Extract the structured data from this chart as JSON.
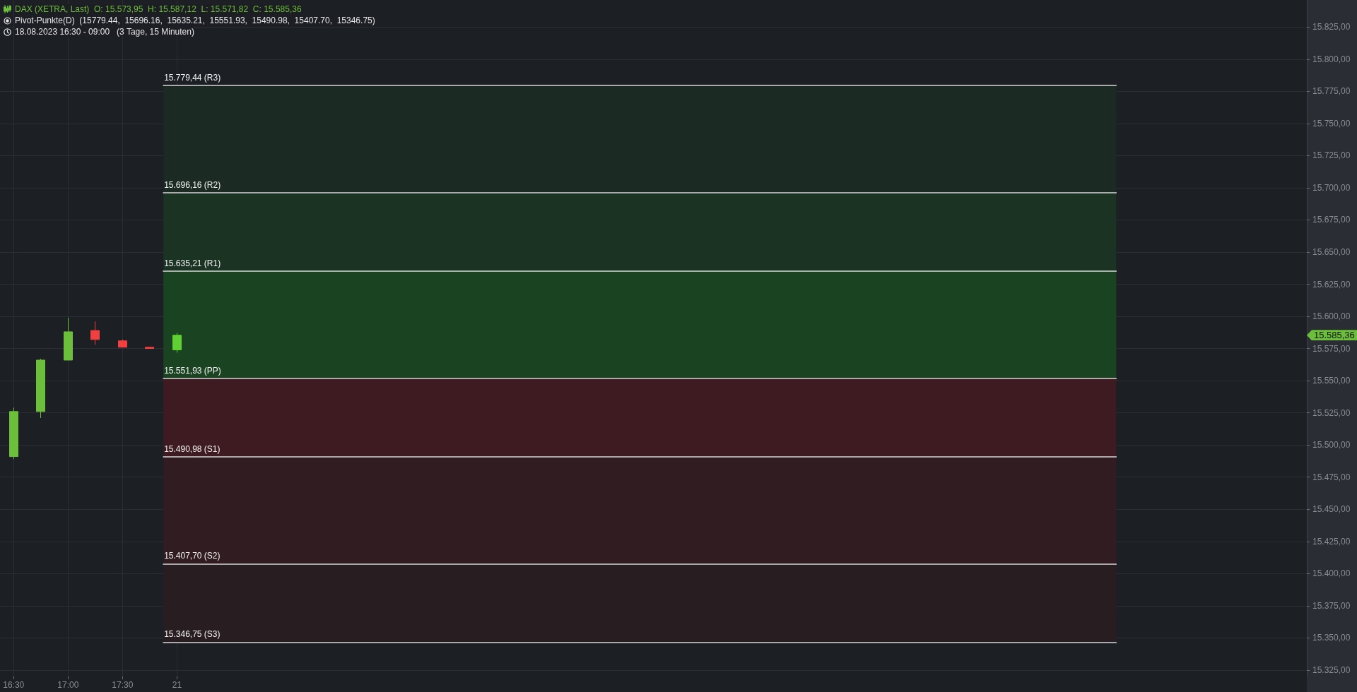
{
  "chart_data": {
    "type": "candlestick",
    "title": "DAX (XETRA, Last)  O: 15.573,95  H: 15.587,12  L: 15.571,82  C: 15.585,36",
    "subtitle": "Pivot-Punkte(D)  (15779.44,  15696.16,  15635.21,  15551.93,  15490.98,  15407.70,  15346.75)",
    "annotations": [
      "18.08.2023 16:30 - 09:00   (3 Tage, 15 Minuten)",
      "15.585,36"
    ],
    "categories": [
      "16:30",
      null,
      "17:00",
      null,
      "17:30",
      null,
      "21",
      null,
      null,
      null,
      null,
      null,
      null,
      null,
      null,
      null,
      null,
      null,
      null,
      null,
      null,
      null,
      null,
      null,
      null,
      null,
      null,
      null,
      null,
      null,
      null,
      null,
      null,
      null,
      null,
      null,
      null,
      null,
      null,
      null,
      null,
      null,
      null,
      null,
      null,
      null,
      null,
      null
    ],
    "ohlc": [
      [
        15491,
        15529,
        15489,
        15526
      ],
      [
        15526,
        15567,
        15521,
        15566
      ],
      [
        15566,
        15599,
        15566,
        15588
      ],
      [
        15589,
        15596,
        15578,
        15582
      ],
      [
        15581,
        15582,
        15576,
        15576
      ],
      [
        15576,
        15576,
        15575,
        15575
      ],
      [
        15573.95,
        15587.12,
        15571.82,
        15585.36
      ],
      null,
      null,
      null,
      null,
      null,
      null,
      null,
      null,
      null,
      null,
      null,
      null,
      null,
      null,
      null,
      null,
      null,
      null,
      null,
      null,
      null,
      null,
      null,
      null,
      null,
      null,
      null,
      null,
      null,
      null,
      null,
      null,
      null,
      null,
      null,
      null,
      null,
      null,
      null,
      null,
      null
    ],
    "colors": [
      "#6cbf3a",
      "#6cbf3a",
      "#6cbf3a",
      "#f23f3f",
      "#f23f3f",
      "#f23f3f",
      "#5fcf33",
      null,
      null,
      null,
      null,
      null,
      null,
      null,
      null,
      null,
      null,
      null,
      null,
      null,
      null,
      null,
      null,
      null,
      null,
      null,
      null,
      null,
      null,
      null,
      null,
      null,
      null,
      null,
      null,
      null,
      null,
      null,
      null,
      null,
      null,
      null,
      null,
      null,
      null,
      null,
      null,
      null
    ],
    "ylim": [
      15320,
      15846
    ],
    "yticks": [
      {
        "value": 15325,
        "label": "15.325,00"
      },
      {
        "value": 15350,
        "label": "15.350,00"
      },
      {
        "value": 15375,
        "label": "15.375,00"
      },
      {
        "value": 15400,
        "label": "15.400,00"
      },
      {
        "value": 15425,
        "label": "15.425,00"
      },
      {
        "value": 15450,
        "label": "15.450,00"
      },
      {
        "value": 15475,
        "label": "15.475,00"
      },
      {
        "value": 15500,
        "label": "15.500,00"
      },
      {
        "value": 15525,
        "label": "15.525,00"
      },
      {
        "value": 15550,
        "label": "15.550,00"
      },
      {
        "value": 15575,
        "label": "15.575,00"
      },
      {
        "value": 15600,
        "label": "15.600,00"
      },
      {
        "value": 15625,
        "label": "15.625,00"
      },
      {
        "value": 15650,
        "label": "15.650,00"
      },
      {
        "value": 15675,
        "label": "15.675,00"
      },
      {
        "value": 15700,
        "label": "15.700,00"
      },
      {
        "value": 15725,
        "label": "15.725,00"
      },
      {
        "value": 15750,
        "label": "15.750,00"
      },
      {
        "value": 15775,
        "label": "15.775,00"
      },
      {
        "value": 15800,
        "label": "15.800,00"
      },
      {
        "value": 15825,
        "label": "15.825,00"
      }
    ],
    "ref_lines": [
      {
        "axis": "y",
        "value": 15779.44,
        "label": "15.779,44 (R3)",
        "color": "#d9d9d9"
      },
      {
        "axis": "y",
        "value": 15696.16,
        "label": "15.696,16 (R2)",
        "color": "#d9d9d9"
      },
      {
        "axis": "y",
        "value": 15635.21,
        "label": "15.635,21 (R1)",
        "color": "#d9d9d9"
      },
      {
        "axis": "y",
        "value": 15551.93,
        "label": "15.551,93 (PP)",
        "color": "#d9d9d9"
      },
      {
        "axis": "y",
        "value": 15490.98,
        "label": "15.490,98 (S1)",
        "color": "#d9d9d9"
      },
      {
        "axis": "y",
        "value": 15407.7,
        "label": "15.407,70 (S2)",
        "color": "#d9d9d9"
      },
      {
        "axis": "y",
        "value": 15346.75,
        "label": "15.346,75 (S3)",
        "color": "#d9d9d9"
      }
    ],
    "bands": [
      {
        "axis": "y",
        "from": 15696.16,
        "to": 15779.44,
        "color": "#1b2a22"
      },
      {
        "axis": "y",
        "from": 15635.21,
        "to": 15696.16,
        "color": "#1b3322"
      },
      {
        "axis": "y",
        "from": 15551.93,
        "to": 15635.21,
        "color": "#1a4321"
      },
      {
        "axis": "y",
        "from": 15490.98,
        "to": 15551.93,
        "color": "#3e1b21"
      },
      {
        "axis": "y",
        "from": 15407.7,
        "to": 15490.98,
        "color": "#311c21"
      },
      {
        "axis": "y",
        "from": 15346.75,
        "to": 15407.7,
        "color": "#281e22"
      }
    ],
    "grid": true
  }
}
